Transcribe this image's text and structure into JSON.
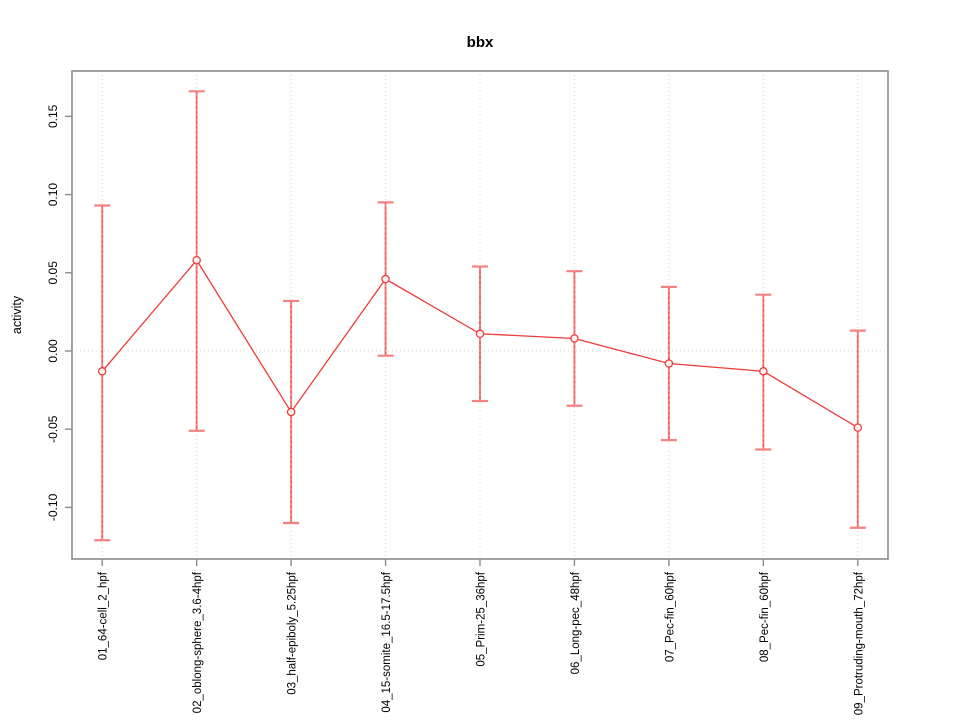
{
  "title": "bbx",
  "chart_data": {
    "type": "line",
    "title": "bbx",
    "xlabel": "",
    "ylabel": "activity",
    "categories": [
      "01_64-cell_2_hpf",
      "02_oblong-sphere_3.6-4hpf",
      "03_half-epiboly_5.25hpf",
      "04_15-somite_16.5-17.5hpf",
      "05_Prim-25_36hpf",
      "06_Long-pec_48hpf",
      "07_Pec-fin_60hpf",
      "08_Pec-fin_60hpf",
      "09_Protruding-mouth_72hpf"
    ],
    "series": [
      {
        "name": "activity",
        "values": [
          -0.013,
          0.058,
          -0.039,
          0.046,
          0.011,
          0.008,
          -0.008,
          -0.013,
          -0.049
        ],
        "upper": [
          0.093,
          0.166,
          0.032,
          0.095,
          0.054,
          0.051,
          0.041,
          0.036,
          0.013
        ],
        "lower": [
          -0.121,
          -0.051,
          -0.11,
          -0.003,
          -0.032,
          -0.035,
          -0.057,
          -0.063,
          -0.113
        ]
      }
    ],
    "xlim": [
      0.68,
      9.32
    ],
    "ylim": [
      -0.133,
      0.179
    ],
    "yticks": [
      -0.1,
      -0.05,
      0.0,
      0.05,
      0.1,
      0.15
    ],
    "ytick_labels": [
      "-0.10",
      "-0.05",
      "0.00",
      "0.05",
      "0.10",
      "0.15"
    ],
    "grid": {
      "vertical_gridlines": true,
      "horizontal_gridlines": false,
      "zero_line": true
    },
    "legend_position": "none",
    "marker": "open-circle",
    "colors": {
      "series": "#ef3b3b",
      "error_bar": "#f58181",
      "error_bar_dash": "#ee4545",
      "grid": "#d6d6d6",
      "axis": "#8c8c8c",
      "text": "#000000",
      "background": "#ffffff"
    }
  }
}
